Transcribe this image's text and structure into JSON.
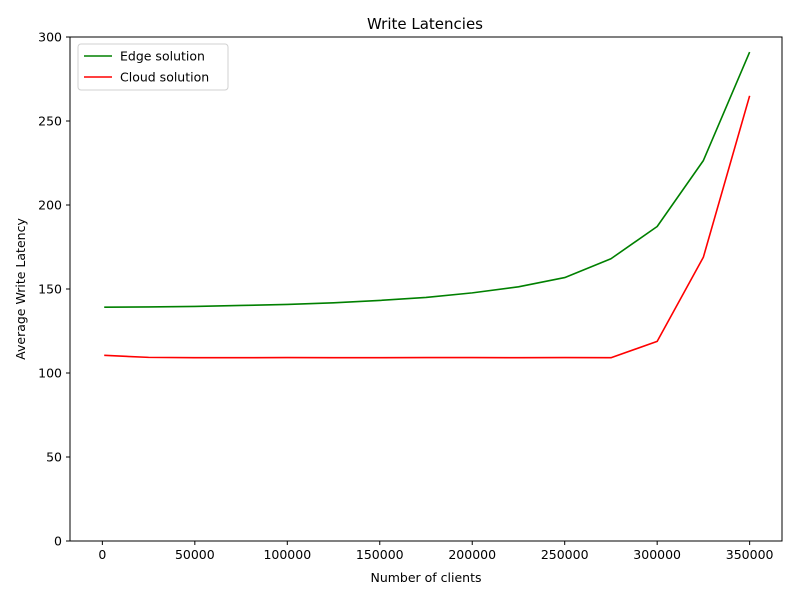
{
  "chart_data": {
    "type": "line",
    "title": "Write Latencies",
    "xlabel": "Number of clients",
    "ylabel": "Average Write Latency",
    "xlim": [
      -17500,
      367500
    ],
    "ylim": [
      0,
      300
    ],
    "xticks": [
      0,
      50000,
      100000,
      150000,
      200000,
      250000,
      300000,
      350000
    ],
    "xtick_labels": [
      "0",
      "50000",
      "100000",
      "150000",
      "200000",
      "250000",
      "300000",
      "350000"
    ],
    "yticks": [
      0,
      50,
      100,
      150,
      200,
      250,
      300
    ],
    "ytick_labels": [
      "0",
      "50",
      "100",
      "150",
      "200",
      "250",
      "300"
    ],
    "grid": false,
    "legend_position": "top-left",
    "x": [
      1000,
      25000,
      50000,
      75000,
      100000,
      125000,
      150000,
      175000,
      200000,
      225000,
      250000,
      275000,
      300000,
      325000,
      350000
    ],
    "series": [
      {
        "name": "Edge solution",
        "color": "#008000",
        "values": [
          139.2,
          139.3,
          139.6,
          140.2,
          140.8,
          141.8,
          143.2,
          145.0,
          147.7,
          151.3,
          156.8,
          168.0,
          187.2,
          226.5,
          291.0
        ]
      },
      {
        "name": "Cloud solution",
        "color": "#ff0000",
        "values": [
          110.5,
          109.3,
          109.1,
          109.1,
          109.2,
          109.1,
          109.1,
          109.2,
          109.2,
          109.1,
          109.2,
          109.1,
          118.8,
          169.0,
          265.0
        ]
      }
    ]
  }
}
